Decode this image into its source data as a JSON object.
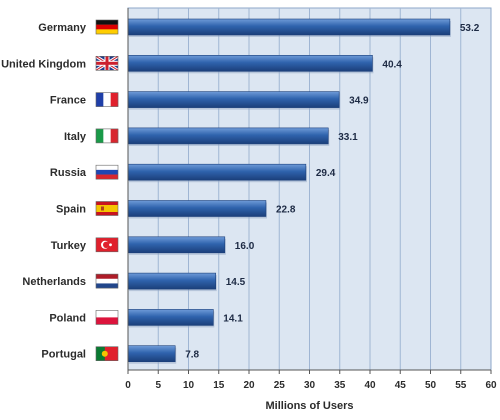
{
  "chart_data": {
    "type": "bar",
    "orientation": "horizontal",
    "categories": [
      "Germany",
      "United Kingdom",
      "France",
      "Italy",
      "Russia",
      "Spain",
      "Turkey",
      "Netherlands",
      "Poland",
      "Portugal"
    ],
    "values": [
      53.2,
      40.4,
      34.9,
      33.1,
      29.4,
      22.8,
      16.0,
      14.5,
      14.1,
      7.8
    ],
    "value_labels": [
      "53.2",
      "40.4",
      "34.9",
      "33.1",
      "29.4",
      "22.8",
      "16.0",
      "14.5",
      "14.1",
      "7.8"
    ],
    "flag_icons": [
      "flag-germany-icon",
      "flag-united-kingdom-icon",
      "flag-france-icon",
      "flag-italy-icon",
      "flag-russia-icon",
      "flag-spain-icon",
      "flag-turkey-icon",
      "flag-netherlands-icon",
      "flag-poland-icon",
      "flag-portugal-icon"
    ],
    "title": "",
    "xlabel": "Millions of Users",
    "ylabel": "",
    "xlim": [
      0,
      60
    ],
    "x_ticks": [
      0,
      5,
      10,
      15,
      20,
      25,
      30,
      35,
      40,
      45,
      50,
      55,
      60
    ],
    "x_tick_labels": [
      "0",
      "5",
      "10",
      "15",
      "20",
      "25",
      "30",
      "35",
      "40",
      "45",
      "50",
      "55",
      "60"
    ],
    "grid": "vertical",
    "legend": "none",
    "colors": {
      "plot_background": "#dce6f2",
      "bar": "#2f63ad",
      "bar_highlight": "#6f9bd8",
      "bar_shadow": "#1b3f7a",
      "grid": "#9fb5d3",
      "text": "#2b2b2b"
    }
  }
}
